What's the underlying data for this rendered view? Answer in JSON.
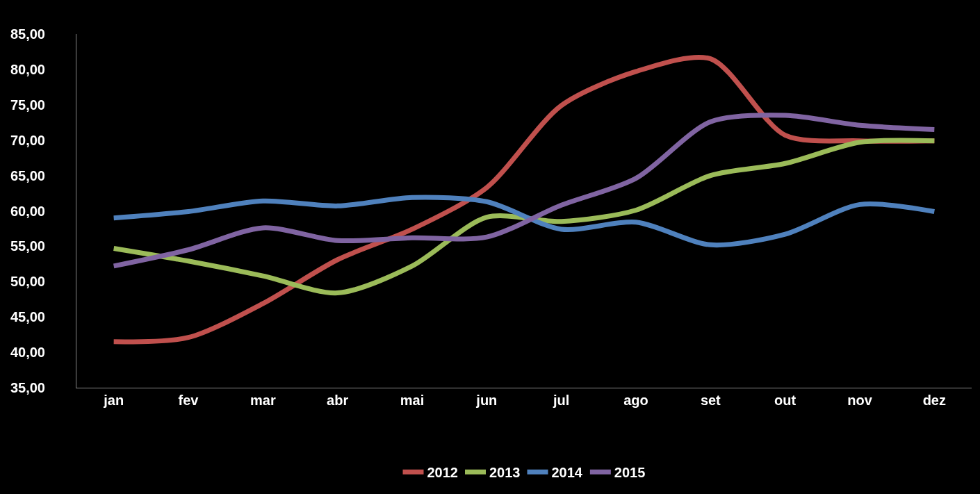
{
  "chart_data": {
    "type": "line",
    "categories": [
      "jan",
      "fev",
      "mar",
      "abr",
      "mai",
      "jun",
      "jul",
      "ago",
      "set",
      "out",
      "nov",
      "dez"
    ],
    "series": [
      {
        "name": "2012",
        "color": "#c0504d",
        "values": [
          41.5,
          42.1,
          46.9,
          53.1,
          57.4,
          63.3,
          74.9,
          79.7,
          81.5,
          70.7,
          69.9,
          69.9
        ]
      },
      {
        "name": "2013",
        "color": "#9bbb59",
        "values": [
          54.7,
          52.9,
          50.8,
          48.4,
          52.2,
          59.1,
          58.5,
          60.1,
          65.0,
          66.7,
          69.7,
          69.9
        ]
      },
      {
        "name": "2014",
        "color": "#4f81bd",
        "values": [
          59.0,
          59.9,
          61.4,
          60.7,
          61.9,
          61.3,
          57.4,
          58.4,
          55.2,
          56.7,
          60.9,
          59.9
        ]
      },
      {
        "name": "2015",
        "color": "#8064a2",
        "values": [
          52.2,
          54.5,
          57.6,
          55.8,
          56.2,
          56.3,
          60.8,
          64.6,
          72.6,
          73.5,
          72.1,
          71.5
        ]
      }
    ],
    "ylim": [
      35,
      85
    ],
    "yticks": [
      {
        "value": 35,
        "label": "35,00"
      },
      {
        "value": 40,
        "label": "40,00"
      },
      {
        "value": 45,
        "label": "45,00"
      },
      {
        "value": 50,
        "label": "50,00"
      },
      {
        "value": 55,
        "label": "55,00"
      },
      {
        "value": 60,
        "label": "60,00"
      },
      {
        "value": 65,
        "label": "65,00"
      },
      {
        "value": 70,
        "label": "70,00"
      },
      {
        "value": 75,
        "label": "75,00"
      },
      {
        "value": 80,
        "label": "80,00"
      },
      {
        "value": 85,
        "label": "85,00"
      }
    ],
    "grid": false,
    "legend": "bottom",
    "marker": "none",
    "line_style": "solid"
  }
}
